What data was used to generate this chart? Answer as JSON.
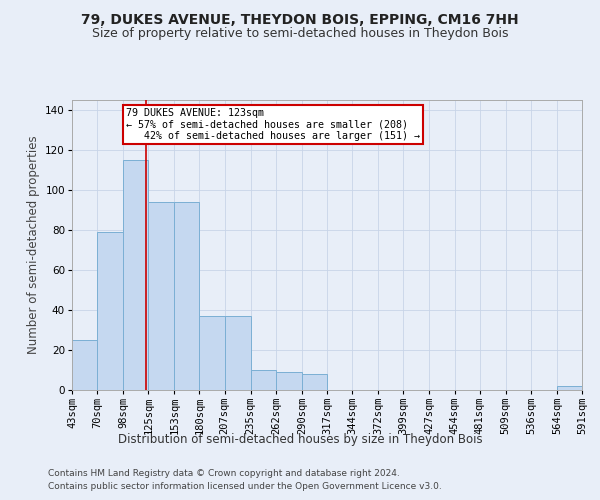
{
  "title": "79, DUKES AVENUE, THEYDON BOIS, EPPING, CM16 7HH",
  "subtitle": "Size of property relative to semi-detached houses in Theydon Bois",
  "xlabel": "Distribution of semi-detached houses by size in Theydon Bois",
  "ylabel": "Number of semi-detached properties",
  "footer1": "Contains HM Land Registry data © Crown copyright and database right 2024.",
  "footer2": "Contains public sector information licensed under the Open Government Licence v3.0.",
  "bar_edges": [
    43,
    70,
    98,
    125,
    153,
    180,
    207,
    235,
    262,
    290,
    317,
    344,
    372,
    399,
    427,
    454,
    481,
    509,
    536,
    564,
    591
  ],
  "bar_heights": [
    25,
    79,
    115,
    94,
    94,
    37,
    37,
    10,
    9,
    8,
    0,
    0,
    0,
    0,
    0,
    0,
    0,
    0,
    0,
    2
  ],
  "bar_color": "#c5d8f0",
  "bar_edge_color": "#7bafd4",
  "vline_x": 123,
  "vline_color": "#cc0000",
  "annotation_line1": "79 DUKES AVENUE: 123sqm",
  "annotation_line2": "← 57% of semi-detached houses are smaller (208)",
  "annotation_line3": "   42% of semi-detached houses are larger (151) →",
  "annotation_box_color": "#cc0000",
  "ylim": [
    0,
    145
  ],
  "yticks": [
    0,
    20,
    40,
    60,
    80,
    100,
    120,
    140
  ],
  "background_color": "#e8eef8",
  "grid_color": "#c8d4e8",
  "title_fontsize": 10,
  "subtitle_fontsize": 9,
  "label_fontsize": 8.5,
  "tick_fontsize": 7.5,
  "footer_fontsize": 6.5
}
